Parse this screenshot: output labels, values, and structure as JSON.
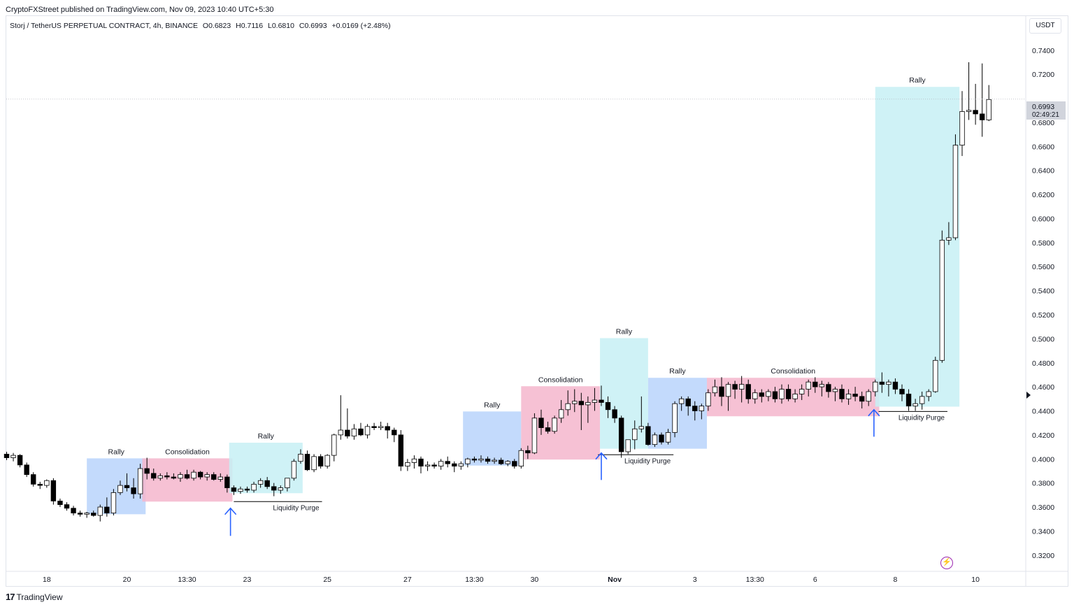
{
  "header": {
    "published_line": "CryptoFXStreet published on TradingView.com, Nov 09, 2023 10:40 UTC+5:30",
    "symbol": "Storj / TetherUS PERPETUAL CONTRACT, 4h, BINANCE",
    "open": "O0.6823",
    "high": "H0.7116",
    "low": "L0.6810",
    "close": "C0.6993",
    "change": "+0.0169 (+2.48%)"
  },
  "price_axis": {
    "unit": "USDT",
    "current_price": "0.6993",
    "countdown": "02:49:21"
  },
  "footer": {
    "brand": "TradingView",
    "logo_text": "17"
  },
  "colors": {
    "rally_blue": "#b9d3fb",
    "rally_cyan": "#c7f0f4",
    "consolidation": "#f5b6cc",
    "arrow": "#2962ff",
    "candle_up": "#ffffff",
    "candle_down": "#000000"
  },
  "chart_data": {
    "type": "candlestick",
    "title": "",
    "xlabel": "",
    "ylabel": "",
    "ylim": [
      0.31,
      0.755
    ],
    "y_ticks": [
      "0.7400",
      "0.7200",
      "0.6800",
      "0.6600",
      "0.6400",
      "0.6200",
      "0.6000",
      "0.5800",
      "0.5600",
      "0.5400",
      "0.5200",
      "0.5000",
      "0.4800",
      "0.4600",
      "0.4400",
      "0.4200",
      "0.4000",
      "0.3800",
      "0.3600",
      "0.3400",
      "0.3200"
    ],
    "y_tick_values": [
      0.74,
      0.72,
      0.68,
      0.66,
      0.64,
      0.62,
      0.6,
      0.58,
      0.56,
      0.54,
      0.52,
      0.5,
      0.48,
      0.46,
      0.44,
      0.42,
      0.4,
      0.38,
      0.36,
      0.34,
      0.32
    ],
    "x_ticks": [
      {
        "label": "18",
        "i": 6
      },
      {
        "label": "20",
        "i": 18
      },
      {
        "label": "13:30",
        "i": 27
      },
      {
        "label": "23",
        "i": 36
      },
      {
        "label": "25",
        "i": 48
      },
      {
        "label": "27",
        "i": 60
      },
      {
        "label": "13:30",
        "i": 70
      },
      {
        "label": "30",
        "i": 79
      },
      {
        "label": "Nov",
        "i": 91
      },
      {
        "label": "3",
        "i": 103
      },
      {
        "label": "13:30",
        "i": 112
      },
      {
        "label": "6",
        "i": 121
      },
      {
        "label": "8",
        "i": 133
      },
      {
        "label": "10",
        "i": 145
      }
    ],
    "zones": [
      {
        "kind": "rally_blue",
        "label": "Rally",
        "i0": 12,
        "i1": 20.8,
        "y0": 0.354,
        "y1": 0.4005
      },
      {
        "kind": "consolidation",
        "label": "Consolidation",
        "i0": 20.3,
        "i1": 33.8,
        "y0": 0.3645,
        "y1": 0.4005
      },
      {
        "kind": "rally_cyan",
        "label": "Rally",
        "i0": 33.3,
        "i1": 44.3,
        "y0": 0.3715,
        "y1": 0.4135
      },
      {
        "kind": "rally_blue",
        "label": "Rally",
        "i0": 68.3,
        "i1": 77,
        "y0": 0.3945,
        "y1": 0.4395
      },
      {
        "kind": "consolidation",
        "label": "Consolidation",
        "i0": 77,
        "i1": 88.8,
        "y0": 0.3995,
        "y1": 0.4605
      },
      {
        "kind": "rally_cyan",
        "label": "Rally",
        "i0": 88.8,
        "i1": 96,
        "y0": 0.4085,
        "y1": 0.5005
      },
      {
        "kind": "rally_blue",
        "label": "Rally",
        "i0": 96,
        "i1": 104.8,
        "y0": 0.4085,
        "y1": 0.4675
      },
      {
        "kind": "consolidation",
        "label": "Consolidation",
        "i0": 104.8,
        "i1": 130.6,
        "y0": 0.4355,
        "y1": 0.4675
      },
      {
        "kind": "rally_cyan",
        "label": "Rally",
        "i0": 130,
        "i1": 142.6,
        "y0": 0.4435,
        "y1": 0.7095
      }
    ],
    "purges": [
      {
        "label": "Liquidity Purge",
        "i0": 34,
        "i1": 47.2,
        "y": 0.3645,
        "arrow_i": 33.5,
        "arrow_y0": 0.336,
        "arrow_y1": 0.359
      },
      {
        "label": "Liquidity Purge",
        "i0": 88.5,
        "i1": 99.8,
        "y": 0.4035,
        "arrow_i": 89,
        "arrow_y0": 0.3825,
        "arrow_y1": 0.405
      },
      {
        "label": "Liquidity Purge",
        "i0": 130.5,
        "i1": 140.8,
        "y": 0.4395,
        "arrow_i": 129.8,
        "arrow_y0": 0.4185,
        "arrow_y1": 0.441
      }
    ],
    "ohlc": [
      [
        0.404,
        0.406,
        0.399,
        0.401
      ],
      [
        0.401,
        0.405,
        0.398,
        0.403
      ],
      [
        0.403,
        0.404,
        0.393,
        0.395
      ],
      [
        0.395,
        0.397,
        0.385,
        0.387
      ],
      [
        0.387,
        0.389,
        0.377,
        0.379
      ],
      [
        0.379,
        0.381,
        0.375,
        0.378
      ],
      [
        0.378,
        0.383,
        0.376,
        0.382
      ],
      [
        0.382,
        0.384,
        0.362,
        0.365
      ],
      [
        0.365,
        0.367,
        0.36,
        0.362
      ],
      [
        0.362,
        0.364,
        0.357,
        0.359
      ],
      [
        0.359,
        0.361,
        0.353,
        0.355
      ],
      [
        0.355,
        0.357,
        0.352,
        0.354
      ],
      [
        0.354,
        0.356,
        0.351,
        0.355
      ],
      [
        0.355,
        0.357,
        0.352,
        0.353
      ],
      [
        0.353,
        0.362,
        0.348,
        0.36
      ],
      [
        0.36,
        0.368,
        0.352,
        0.355
      ],
      [
        0.355,
        0.375,
        0.353,
        0.372
      ],
      [
        0.372,
        0.382,
        0.37,
        0.378
      ],
      [
        0.378,
        0.388,
        0.373,
        0.376
      ],
      [
        0.376,
        0.384,
        0.367,
        0.371
      ],
      [
        0.371,
        0.396,
        0.367,
        0.392
      ],
      [
        0.392,
        0.401,
        0.383,
        0.388
      ],
      [
        0.388,
        0.392,
        0.382,
        0.384
      ],
      [
        0.384,
        0.388,
        0.382,
        0.386
      ],
      [
        0.386,
        0.389,
        0.383,
        0.385
      ],
      [
        0.385,
        0.388,
        0.383,
        0.384
      ],
      [
        0.384,
        0.389,
        0.381,
        0.387
      ],
      [
        0.387,
        0.391,
        0.383,
        0.384
      ],
      [
        0.384,
        0.391,
        0.382,
        0.389
      ],
      [
        0.389,
        0.39,
        0.383,
        0.385
      ],
      [
        0.385,
        0.389,
        0.382,
        0.387
      ],
      [
        0.387,
        0.389,
        0.382,
        0.383
      ],
      [
        0.383,
        0.388,
        0.381,
        0.385
      ],
      [
        0.385,
        0.387,
        0.372,
        0.376
      ],
      [
        0.376,
        0.378,
        0.37,
        0.373
      ],
      [
        0.373,
        0.377,
        0.371,
        0.375
      ],
      [
        0.375,
        0.377,
        0.372,
        0.374
      ],
      [
        0.374,
        0.381,
        0.372,
        0.379
      ],
      [
        0.379,
        0.384,
        0.376,
        0.382
      ],
      [
        0.382,
        0.385,
        0.375,
        0.377
      ],
      [
        0.377,
        0.38,
        0.369,
        0.374
      ],
      [
        0.374,
        0.378,
        0.371,
        0.376
      ],
      [
        0.376,
        0.384,
        0.373,
        0.384
      ],
      [
        0.384,
        0.4,
        0.382,
        0.398
      ],
      [
        0.398,
        0.408,
        0.396,
        0.404
      ],
      [
        0.404,
        0.407,
        0.39,
        0.391
      ],
      [
        0.391,
        0.404,
        0.389,
        0.402
      ],
      [
        0.402,
        0.404,
        0.392,
        0.394
      ],
      [
        0.394,
        0.404,
        0.392,
        0.403
      ],
      [
        0.403,
        0.421,
        0.398,
        0.42
      ],
      [
        0.42,
        0.453,
        0.416,
        0.424
      ],
      [
        0.424,
        0.442,
        0.417,
        0.419
      ],
      [
        0.419,
        0.429,
        0.416,
        0.425
      ],
      [
        0.425,
        0.43,
        0.419,
        0.42
      ],
      [
        0.42,
        0.429,
        0.417,
        0.427
      ],
      [
        0.427,
        0.43,
        0.424,
        0.426
      ],
      [
        0.426,
        0.431,
        0.424,
        0.427
      ],
      [
        0.427,
        0.43,
        0.417,
        0.424
      ],
      [
        0.424,
        0.426,
        0.414,
        0.42
      ],
      [
        0.42,
        0.424,
        0.39,
        0.394
      ],
      [
        0.394,
        0.4,
        0.39,
        0.397
      ],
      [
        0.397,
        0.403,
        0.392,
        0.4
      ],
      [
        0.4,
        0.402,
        0.388,
        0.394
      ],
      [
        0.394,
        0.398,
        0.39,
        0.395
      ],
      [
        0.395,
        0.397,
        0.392,
        0.394
      ],
      [
        0.394,
        0.4,
        0.391,
        0.398
      ],
      [
        0.398,
        0.402,
        0.393,
        0.396
      ],
      [
        0.396,
        0.398,
        0.389,
        0.394
      ],
      [
        0.394,
        0.398,
        0.391,
        0.396
      ],
      [
        0.396,
        0.401,
        0.393,
        0.4
      ],
      [
        0.4,
        0.402,
        0.397,
        0.399
      ],
      [
        0.399,
        0.403,
        0.397,
        0.4
      ],
      [
        0.4,
        0.402,
        0.396,
        0.398
      ],
      [
        0.398,
        0.401,
        0.396,
        0.399
      ],
      [
        0.399,
        0.401,
        0.395,
        0.396
      ],
      [
        0.396,
        0.399,
        0.394,
        0.398
      ],
      [
        0.398,
        0.4,
        0.392,
        0.394
      ],
      [
        0.394,
        0.409,
        0.392,
        0.407
      ],
      [
        0.407,
        0.411,
        0.4,
        0.405
      ],
      [
        0.405,
        0.438,
        0.404,
        0.434
      ],
      [
        0.434,
        0.441,
        0.42,
        0.426
      ],
      [
        0.426,
        0.431,
        0.421,
        0.423
      ],
      [
        0.423,
        0.436,
        0.421,
        0.434
      ],
      [
        0.434,
        0.449,
        0.43,
        0.441
      ],
      [
        0.441,
        0.457,
        0.436,
        0.446
      ],
      [
        0.446,
        0.458,
        0.439,
        0.448
      ],
      [
        0.448,
        0.455,
        0.424,
        0.445
      ],
      [
        0.445,
        0.452,
        0.43,
        0.447
      ],
      [
        0.447,
        0.459,
        0.44,
        0.449
      ],
      [
        0.449,
        0.461,
        0.444,
        0.447
      ],
      [
        0.447,
        0.452,
        0.434,
        0.441
      ],
      [
        0.441,
        0.444,
        0.43,
        0.434
      ],
      [
        0.434,
        0.436,
        0.401,
        0.406
      ],
      [
        0.406,
        0.415,
        0.404,
        0.416
      ],
      [
        0.416,
        0.432,
        0.408,
        0.425
      ],
      [
        0.425,
        0.452,
        0.422,
        0.427
      ],
      [
        0.427,
        0.43,
        0.411,
        0.412
      ],
      [
        0.412,
        0.422,
        0.41,
        0.42
      ],
      [
        0.42,
        0.422,
        0.412,
        0.414
      ],
      [
        0.414,
        0.425,
        0.412,
        0.422
      ],
      [
        0.422,
        0.448,
        0.418,
        0.446
      ],
      [
        0.446,
        0.452,
        0.44,
        0.45
      ],
      [
        0.45,
        0.452,
        0.436,
        0.444
      ],
      [
        0.444,
        0.448,
        0.432,
        0.44
      ],
      [
        0.44,
        0.446,
        0.433,
        0.444
      ],
      [
        0.444,
        0.458,
        0.44,
        0.455
      ],
      [
        0.455,
        0.466,
        0.452,
        0.46
      ],
      [
        0.46,
        0.468,
        0.444,
        0.452
      ],
      [
        0.452,
        0.464,
        0.44,
        0.462
      ],
      [
        0.462,
        0.465,
        0.45,
        0.458
      ],
      [
        0.458,
        0.469,
        0.447,
        0.462
      ],
      [
        0.462,
        0.466,
        0.446,
        0.45
      ],
      [
        0.45,
        0.458,
        0.446,
        0.455
      ],
      [
        0.455,
        0.458,
        0.447,
        0.452
      ],
      [
        0.452,
        0.458,
        0.448,
        0.456
      ],
      [
        0.456,
        0.46,
        0.447,
        0.45
      ],
      [
        0.45,
        0.462,
        0.446,
        0.458
      ],
      [
        0.458,
        0.462,
        0.448,
        0.45
      ],
      [
        0.45,
        0.458,
        0.447,
        0.454
      ],
      [
        0.454,
        0.462,
        0.449,
        0.458
      ],
      [
        0.458,
        0.466,
        0.452,
        0.464
      ],
      [
        0.464,
        0.468,
        0.455,
        0.46
      ],
      [
        0.46,
        0.465,
        0.452,
        0.462
      ],
      [
        0.462,
        0.464,
        0.451,
        0.456
      ],
      [
        0.456,
        0.46,
        0.448,
        0.458
      ],
      [
        0.458,
        0.462,
        0.447,
        0.45
      ],
      [
        0.45,
        0.458,
        0.445,
        0.454
      ],
      [
        0.454,
        0.46,
        0.448,
        0.452
      ],
      [
        0.452,
        0.456,
        0.442,
        0.448
      ],
      [
        0.448,
        0.458,
        0.444,
        0.456
      ],
      [
        0.456,
        0.466,
        0.452,
        0.464
      ],
      [
        0.464,
        0.472,
        0.455,
        0.462
      ],
      [
        0.462,
        0.466,
        0.452,
        0.464
      ],
      [
        0.464,
        0.467,
        0.454,
        0.458
      ],
      [
        0.458,
        0.462,
        0.448,
        0.454
      ],
      [
        0.454,
        0.458,
        0.44,
        0.444
      ],
      [
        0.444,
        0.45,
        0.44,
        0.446
      ],
      [
        0.446,
        0.456,
        0.441,
        0.452
      ],
      [
        0.452,
        0.458,
        0.448,
        0.456
      ],
      [
        0.456,
        0.485,
        0.455,
        0.482
      ],
      [
        0.482,
        0.59,
        0.48,
        0.582
      ],
      [
        0.582,
        0.597,
        0.578,
        0.584
      ],
      [
        0.584,
        0.67,
        0.582,
        0.661
      ],
      [
        0.661,
        0.706,
        0.652,
        0.689
      ],
      [
        0.689,
        0.73,
        0.682,
        0.69
      ],
      [
        0.69,
        0.712,
        0.678,
        0.687
      ],
      [
        0.687,
        0.729,
        0.668,
        0.682
      ],
      [
        0.682,
        0.711,
        0.681,
        0.699
      ]
    ]
  }
}
